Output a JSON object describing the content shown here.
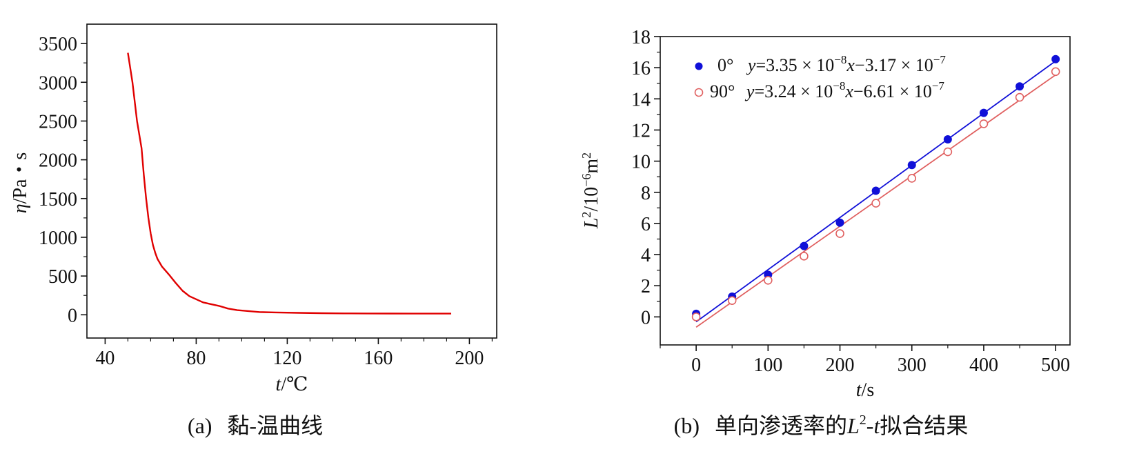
{
  "colors": {
    "red": "#e00000",
    "blue": "#1010d8",
    "open_red": "#e06060",
    "axis": "#111111"
  },
  "chart_data": [
    {
      "type": "line",
      "caption": {
        "prefix": "(a)",
        "text": "黏-温曲线"
      },
      "xlabel": {
        "var": "t",
        "unit": "/℃"
      },
      "ylabel": {
        "var": "η",
        "unit": "/Pa・s"
      },
      "xlim": [
        32,
        212
      ],
      "ylim": [
        -300,
        3750
      ],
      "xticks": [
        40,
        80,
        120,
        160,
        200
      ],
      "yticks": [
        0,
        500,
        1000,
        1500,
        2000,
        2500,
        3000,
        3500
      ],
      "series": [
        {
          "color": "#e00000",
          "x": [
            50,
            52,
            54,
            56,
            57,
            58,
            59,
            60,
            61,
            62,
            63,
            65,
            68,
            71,
            74,
            77,
            80,
            83,
            86,
            90,
            94,
            98,
            102,
            108,
            115,
            125,
            135,
            145,
            155,
            165,
            175,
            185,
            192
          ],
          "y": [
            3380,
            3000,
            2500,
            2150,
            1800,
            1500,
            1250,
            1050,
            900,
            800,
            720,
            620,
            520,
            410,
            310,
            240,
            200,
            160,
            140,
            115,
            80,
            60,
            50,
            35,
            30,
            25,
            20,
            18,
            17,
            16,
            15,
            15,
            15
          ]
        }
      ]
    },
    {
      "type": "scatter",
      "caption": {
        "prefix": "(b)",
        "text_before": "单向渗透率的",
        "l_var": "L",
        "l_sup": "2",
        "dash": "-",
        "t_var": "t",
        "text_after": "拟合结果"
      },
      "xlabel": {
        "var": "t",
        "unit": "/s"
      },
      "ylabel": {
        "var": "L",
        "sup": "2",
        "unit": "/10",
        "exp": "−6",
        "unit2": "m",
        "sup2": "2"
      },
      "xlim": [
        -50,
        520
      ],
      "ylim": [
        -1.8,
        18
      ],
      "xticks": [
        0,
        100,
        200,
        300,
        400,
        500
      ],
      "yticks": [
        0,
        2,
        4,
        6,
        8,
        10,
        12,
        14,
        16,
        18
      ],
      "series": [
        {
          "name": "0°",
          "marker": "filled",
          "color": "#1010d8",
          "equation": {
            "y": "y",
            "a": "=3.35 × 10",
            "ae": "−8",
            "x": "x",
            "b": "−3.17 × 10",
            "be": "−7"
          },
          "x": [
            0,
            50,
            100,
            150,
            200,
            250,
            300,
            350,
            400,
            450,
            500
          ],
          "y": [
            0.2,
            1.3,
            2.7,
            4.55,
            6.05,
            8.1,
            9.75,
            11.4,
            13.1,
            14.8,
            16.55
          ],
          "fit": {
            "slope": 0.0335,
            "intercept": -0.317
          }
        },
        {
          "name": "90°",
          "marker": "open",
          "color": "#e06060",
          "equation": {
            "y": "y",
            "a": "=3.24 × 10",
            "ae": "−8",
            "x": "x",
            "b": "−6.61 × 10",
            "be": "−7"
          },
          "x": [
            0,
            50,
            100,
            150,
            200,
            250,
            300,
            350,
            400,
            450,
            500
          ],
          "y": [
            0.0,
            1.05,
            2.35,
            3.9,
            5.35,
            7.3,
            8.9,
            10.6,
            12.4,
            14.1,
            15.75
          ],
          "fit": {
            "slope": 0.0324,
            "intercept": -0.661
          }
        }
      ]
    }
  ]
}
